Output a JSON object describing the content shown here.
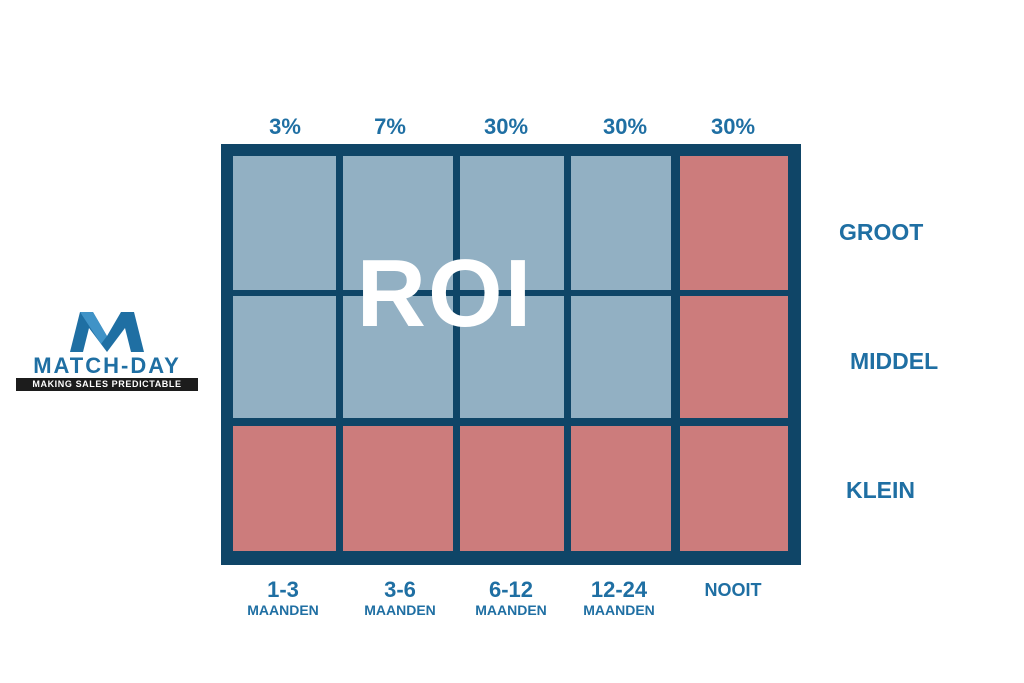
{
  "logo": {
    "wordmark": "MATCH-DAY",
    "tagline": "MAKING SALES PREDICTABLE",
    "icon": "m-logo-icon",
    "color": "#1f6fa3"
  },
  "matrix": {
    "center_label": "ROI",
    "percentages": [
      "3%",
      "7%",
      "30%",
      "30%",
      "30%"
    ],
    "rows": [
      "GROOT",
      "MIDDEL",
      "KLEIN"
    ],
    "columns": [
      {
        "main": "1-3",
        "sub": "MAANDEN"
      },
      {
        "main": "3-6",
        "sub": "MAANDEN"
      },
      {
        "main": "6-12",
        "sub": "MAANDEN"
      },
      {
        "main": "12-24",
        "sub": "MAANDEN"
      },
      {
        "main": "NOOIT",
        "sub": ""
      }
    ],
    "cell_colors": [
      [
        "blue",
        "blue",
        "blue",
        "blue",
        "red"
      ],
      [
        "blue",
        "blue",
        "blue",
        "blue",
        "red"
      ],
      [
        "red",
        "red",
        "red",
        "red",
        "red"
      ]
    ],
    "colors": {
      "border": "#0f4567",
      "blue": "#92b0c3",
      "red": "#cc7c7c",
      "text": "#1f6fa3"
    }
  }
}
